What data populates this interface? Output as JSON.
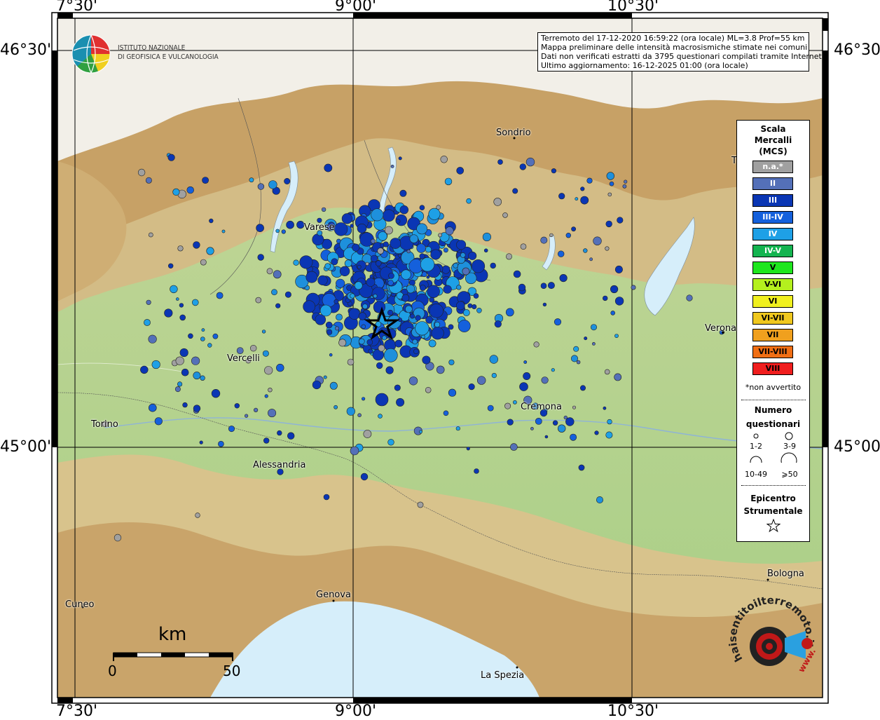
{
  "map": {
    "lon_ticks": [
      "7°30'",
      "9°00'",
      "10°30'"
    ],
    "lat_ticks": [
      "46°30'",
      "45°00'"
    ],
    "cities": [
      {
        "name": "Sondrio"
      },
      {
        "name": "Varese"
      },
      {
        "name": "Vercelli"
      },
      {
        "name": "Torino"
      },
      {
        "name": "Cremona"
      },
      {
        "name": "Alessandria"
      },
      {
        "name": "Verona"
      },
      {
        "name": "Bologna"
      },
      {
        "name": "Genova"
      },
      {
        "name": "Cuneo"
      },
      {
        "name": "La Spezia"
      },
      {
        "name": "T"
      }
    ]
  },
  "info_box": {
    "line1": "Terremoto del 17-12-2020 16:59:22 (ora locale) ML=3.8 Prof=55 km",
    "line2": "Mappa preliminare delle intensità macrosismiche stimate nei comuni",
    "line3": "Dati non verificati estratti da 3795 questionari compilati tramite Internet.",
    "line4": "Ultimo aggiornamento: 16-12-2025 01:00 (ora locale)"
  },
  "logo": {
    "line1": "ISTITUTO NAZIONALE",
    "line2": "DI GEOFISICA E VULCANOLOGIA"
  },
  "legend": {
    "title1": "Scala",
    "title2": "Mercalli",
    "title3": "(MCS)",
    "classes": [
      {
        "label": "n.a.*",
        "color": "#a0a0a0"
      },
      {
        "label": "II",
        "color": "#5470b8"
      },
      {
        "label": "III",
        "color": "#0a36b4"
      },
      {
        "label": "III-IV",
        "color": "#1460dc"
      },
      {
        "label": "IV",
        "color": "#1ea0e6"
      },
      {
        "label": "IV-V",
        "color": "#14b450"
      },
      {
        "label": "V",
        "color": "#1ee61e"
      },
      {
        "label": "V-VI",
        "color": "#b4f01e"
      },
      {
        "label": "VI",
        "color": "#f0f01e"
      },
      {
        "label": "VI-VII",
        "color": "#f0c81e"
      },
      {
        "label": "VII",
        "color": "#f0a01e"
      },
      {
        "label": "VII-VIII",
        "color": "#f06e14"
      },
      {
        "label": "VIII",
        "color": "#f01e1e"
      }
    ],
    "note": "*non avvertito",
    "count_title1": "Numero",
    "count_title2": "questionari",
    "counts": [
      "1-2",
      "3-9",
      "10-49",
      "⩾50"
    ],
    "epi_title1": "Epicentro",
    "epi_title2": "Strumentale"
  },
  "scale_bar": {
    "unit": "km",
    "start": "0",
    "end": "50"
  },
  "badge": {
    "text": "haisentitoilterremoto.it",
    "sub": "www."
  }
}
